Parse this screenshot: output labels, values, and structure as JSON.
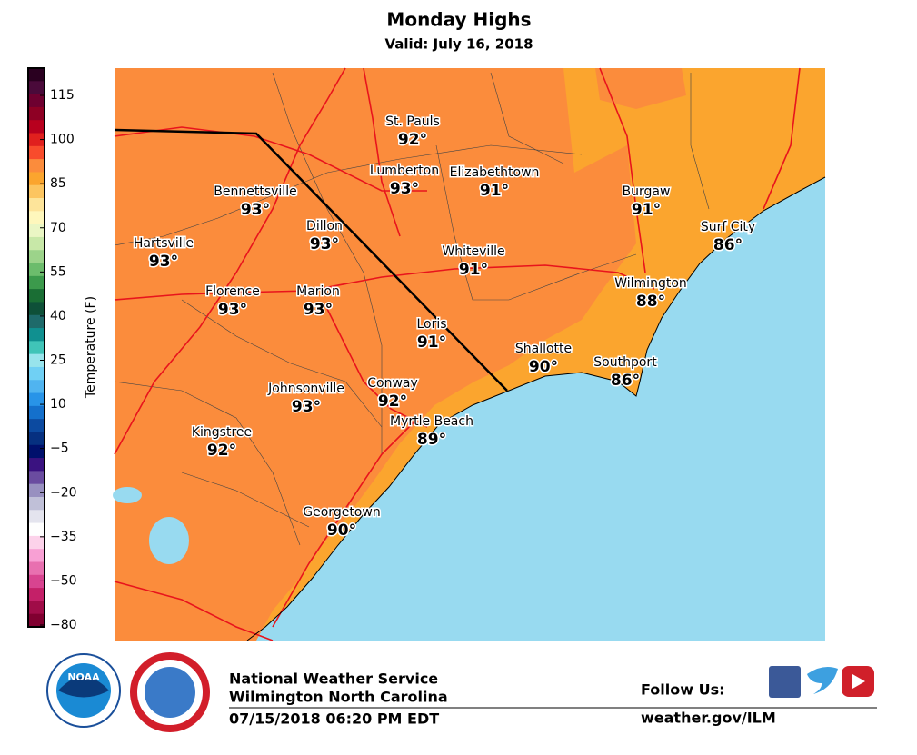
{
  "header": {
    "title": "Monday Highs",
    "subtitle": "Valid: July 16, 2018"
  },
  "colorbar": {
    "label": "Temperature (F)",
    "ticks": [
      115,
      100,
      85,
      70,
      55,
      40,
      25,
      10,
      {
        "value": -5,
        "label": "−5"
      },
      {
        "value": -20,
        "label": "−20"
      },
      {
        "value": -35,
        "label": "−35"
      },
      {
        "value": -50,
        "label": "−50"
      },
      {
        "value": -80,
        "label": "−80"
      }
    ],
    "colors": [
      "#2a0020",
      "#4a0a3a",
      "#6e0030",
      "#8e0024",
      "#b8001e",
      "#e0201e",
      "#f84c2c",
      "#fb8c3c",
      "#fba52e",
      "#fcc560",
      "#fde49a",
      "#fef7bc",
      "#eaf6c4",
      "#c8e8a8",
      "#9cd38a",
      "#6cbc6c",
      "#3c9a4c",
      "#1a6e34",
      "#0e5038",
      "#1e6a6a",
      "#109090",
      "#40c4b8",
      "#98e4ec",
      "#70d0f4",
      "#50b4f0",
      "#2894e8",
      "#1470cc",
      "#0c4aa0",
      "#063080",
      "#00106c",
      "#3a1280",
      "#6a4ca0",
      "#9890c0",
      "#c0c0d8",
      "#e4e4ee",
      "#fefefe",
      "#fcd2ea",
      "#f8a0d4",
      "#e870b0",
      "#d84490",
      "#c42068",
      "#a00c48",
      "#800030"
    ]
  },
  "cities": [
    {
      "name": "St. Pauls",
      "temp": "92°"
    },
    {
      "name": "Lumberton",
      "temp": "93°"
    },
    {
      "name": "Elizabethtown",
      "temp": "91°"
    },
    {
      "name": "Burgaw",
      "temp": "91°"
    },
    {
      "name": "Bennettsville",
      "temp": "93°"
    },
    {
      "name": "Dillon",
      "temp": "93°"
    },
    {
      "name": "Surf City",
      "temp": "86°"
    },
    {
      "name": "Hartsville",
      "temp": "93°"
    },
    {
      "name": "Whiteville",
      "temp": "91°"
    },
    {
      "name": "Florence",
      "temp": "93°"
    },
    {
      "name": "Marion",
      "temp": "93°"
    },
    {
      "name": "Wilmington",
      "temp": "88°"
    },
    {
      "name": "Loris",
      "temp": "91°"
    },
    {
      "name": "Shallotte",
      "temp": "90°"
    },
    {
      "name": "Southport",
      "temp": "86°"
    },
    {
      "name": "Johnsonville",
      "temp": "93°"
    },
    {
      "name": "Conway",
      "temp": "92°"
    },
    {
      "name": "Myrtle Beach",
      "temp": "89°"
    },
    {
      "name": "Kingstree",
      "temp": "92°"
    },
    {
      "name": "Georgetown",
      "temp": "90°"
    }
  ],
  "footer": {
    "logo": "NOAA",
    "org": "National Weather Service",
    "office": "Wilmington North Carolina",
    "issued": "07/15/2018 06:20 PM EDT",
    "follow": "Follow Us:",
    "url": "weather.gov/ILM"
  }
}
